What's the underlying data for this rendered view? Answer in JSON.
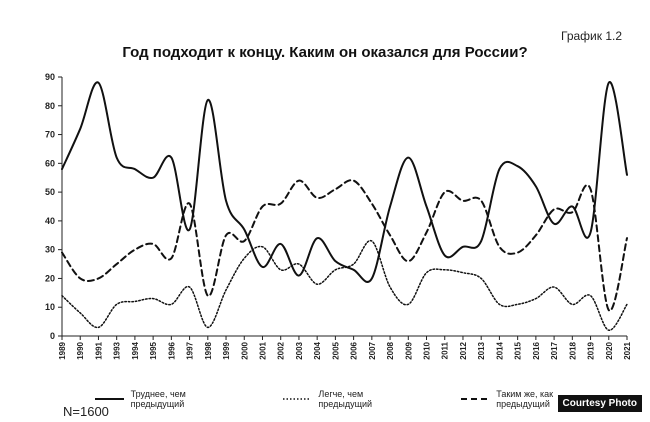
{
  "page": {
    "figure_label": "График 1.2",
    "footnote": "N=1600",
    "credit": "Courtesy Photo"
  },
  "chart_data": {
    "type": "line",
    "title": "Год подходит к концу. Каким он оказался для России?",
    "xlabel": "",
    "ylabel": "",
    "ylim": [
      0,
      90
    ],
    "yticks": [
      0,
      10,
      20,
      30,
      40,
      50,
      60,
      70,
      80,
      90
    ],
    "grid": false,
    "legend_position": "bottom",
    "x": [
      "1989",
      "1990",
      "1991",
      "1993",
      "1994",
      "1995",
      "1996",
      "1997",
      "1998",
      "1999",
      "2000",
      "2001",
      "2002",
      "2003",
      "2004",
      "2005",
      "2006",
      "2007",
      "2008",
      "2009",
      "2010",
      "2011",
      "2012",
      "2013",
      "2014",
      "2015",
      "2016",
      "2017",
      "2018",
      "2019",
      "2020",
      "2021"
    ],
    "series": [
      {
        "name": "Труднее, чем предыдущий",
        "style": "solid",
        "values": [
          58,
          72,
          88,
          62,
          58,
          55,
          62,
          37,
          82,
          47,
          37,
          24,
          32,
          21,
          34,
          26,
          23,
          20,
          45,
          62,
          45,
          28,
          31,
          33,
          58,
          59,
          52,
          39,
          45,
          36,
          88,
          56
        ]
      },
      {
        "name": "Легче, чем предыдущий",
        "style": "dotted",
        "values": [
          14,
          8,
          3,
          11,
          12,
          13,
          11,
          17,
          3,
          16,
          27,
          31,
          23,
          25,
          18,
          23,
          25,
          33,
          17,
          11,
          22,
          23,
          22,
          20,
          11,
          11,
          13,
          17,
          11,
          14,
          2,
          11
        ]
      },
      {
        "name": "Таким же, как предыдущий",
        "style": "dashed",
        "values": [
          29,
          20,
          20,
          25,
          30,
          32,
          27,
          46,
          14,
          35,
          33,
          45,
          46,
          54,
          48,
          51,
          54,
          46,
          35,
          26,
          36,
          50,
          47,
          47,
          31,
          29,
          35,
          44,
          43,
          51,
          9,
          34
        ]
      }
    ]
  }
}
